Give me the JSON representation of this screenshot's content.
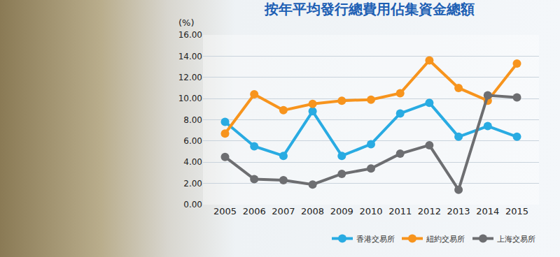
{
  "chart_data": {
    "type": "line",
    "title": "按年平均發行總費用佔集資金總額",
    "y_label": "(%)",
    "categories": [
      "2005",
      "2006",
      "2007",
      "2008",
      "2009",
      "2010",
      "2011",
      "2012",
      "2013",
      "2014",
      "2015"
    ],
    "series": [
      {
        "name": "香港交易所",
        "color": "#29abe2",
        "marker": "circle",
        "values": [
          7.8,
          5.5,
          4.6,
          8.8,
          4.6,
          5.7,
          8.6,
          9.6,
          6.4,
          7.4,
          6.4
        ]
      },
      {
        "name": "紐約交易所",
        "color": "#f7941d",
        "marker": "circle",
        "values": [
          6.7,
          10.4,
          8.9,
          9.5,
          9.8,
          9.9,
          10.5,
          13.6,
          11.0,
          9.8,
          13.3
        ]
      },
      {
        "name": "上海交易所",
        "color": "#6d6e71",
        "marker": "circle",
        "values": [
          4.5,
          2.4,
          2.3,
          1.9,
          2.9,
          3.4,
          4.8,
          5.6,
          1.4,
          10.3,
          10.1
        ]
      }
    ],
    "ylim": [
      0,
      16
    ],
    "yticks": [
      {
        "value": 0,
        "label": "0.00"
      },
      {
        "value": 2,
        "label": "2.00"
      },
      {
        "value": 4,
        "label": "4.00"
      },
      {
        "value": 6,
        "label": "6.00"
      },
      {
        "value": 8,
        "label": "8.00"
      },
      {
        "value": 10,
        "label": "10.00"
      },
      {
        "value": 12,
        "label": "12.00"
      },
      {
        "value": 14,
        "label": "14.00"
      },
      {
        "value": 16,
        "label": "16.00"
      }
    ],
    "grid": true,
    "legend": "bottom right"
  }
}
